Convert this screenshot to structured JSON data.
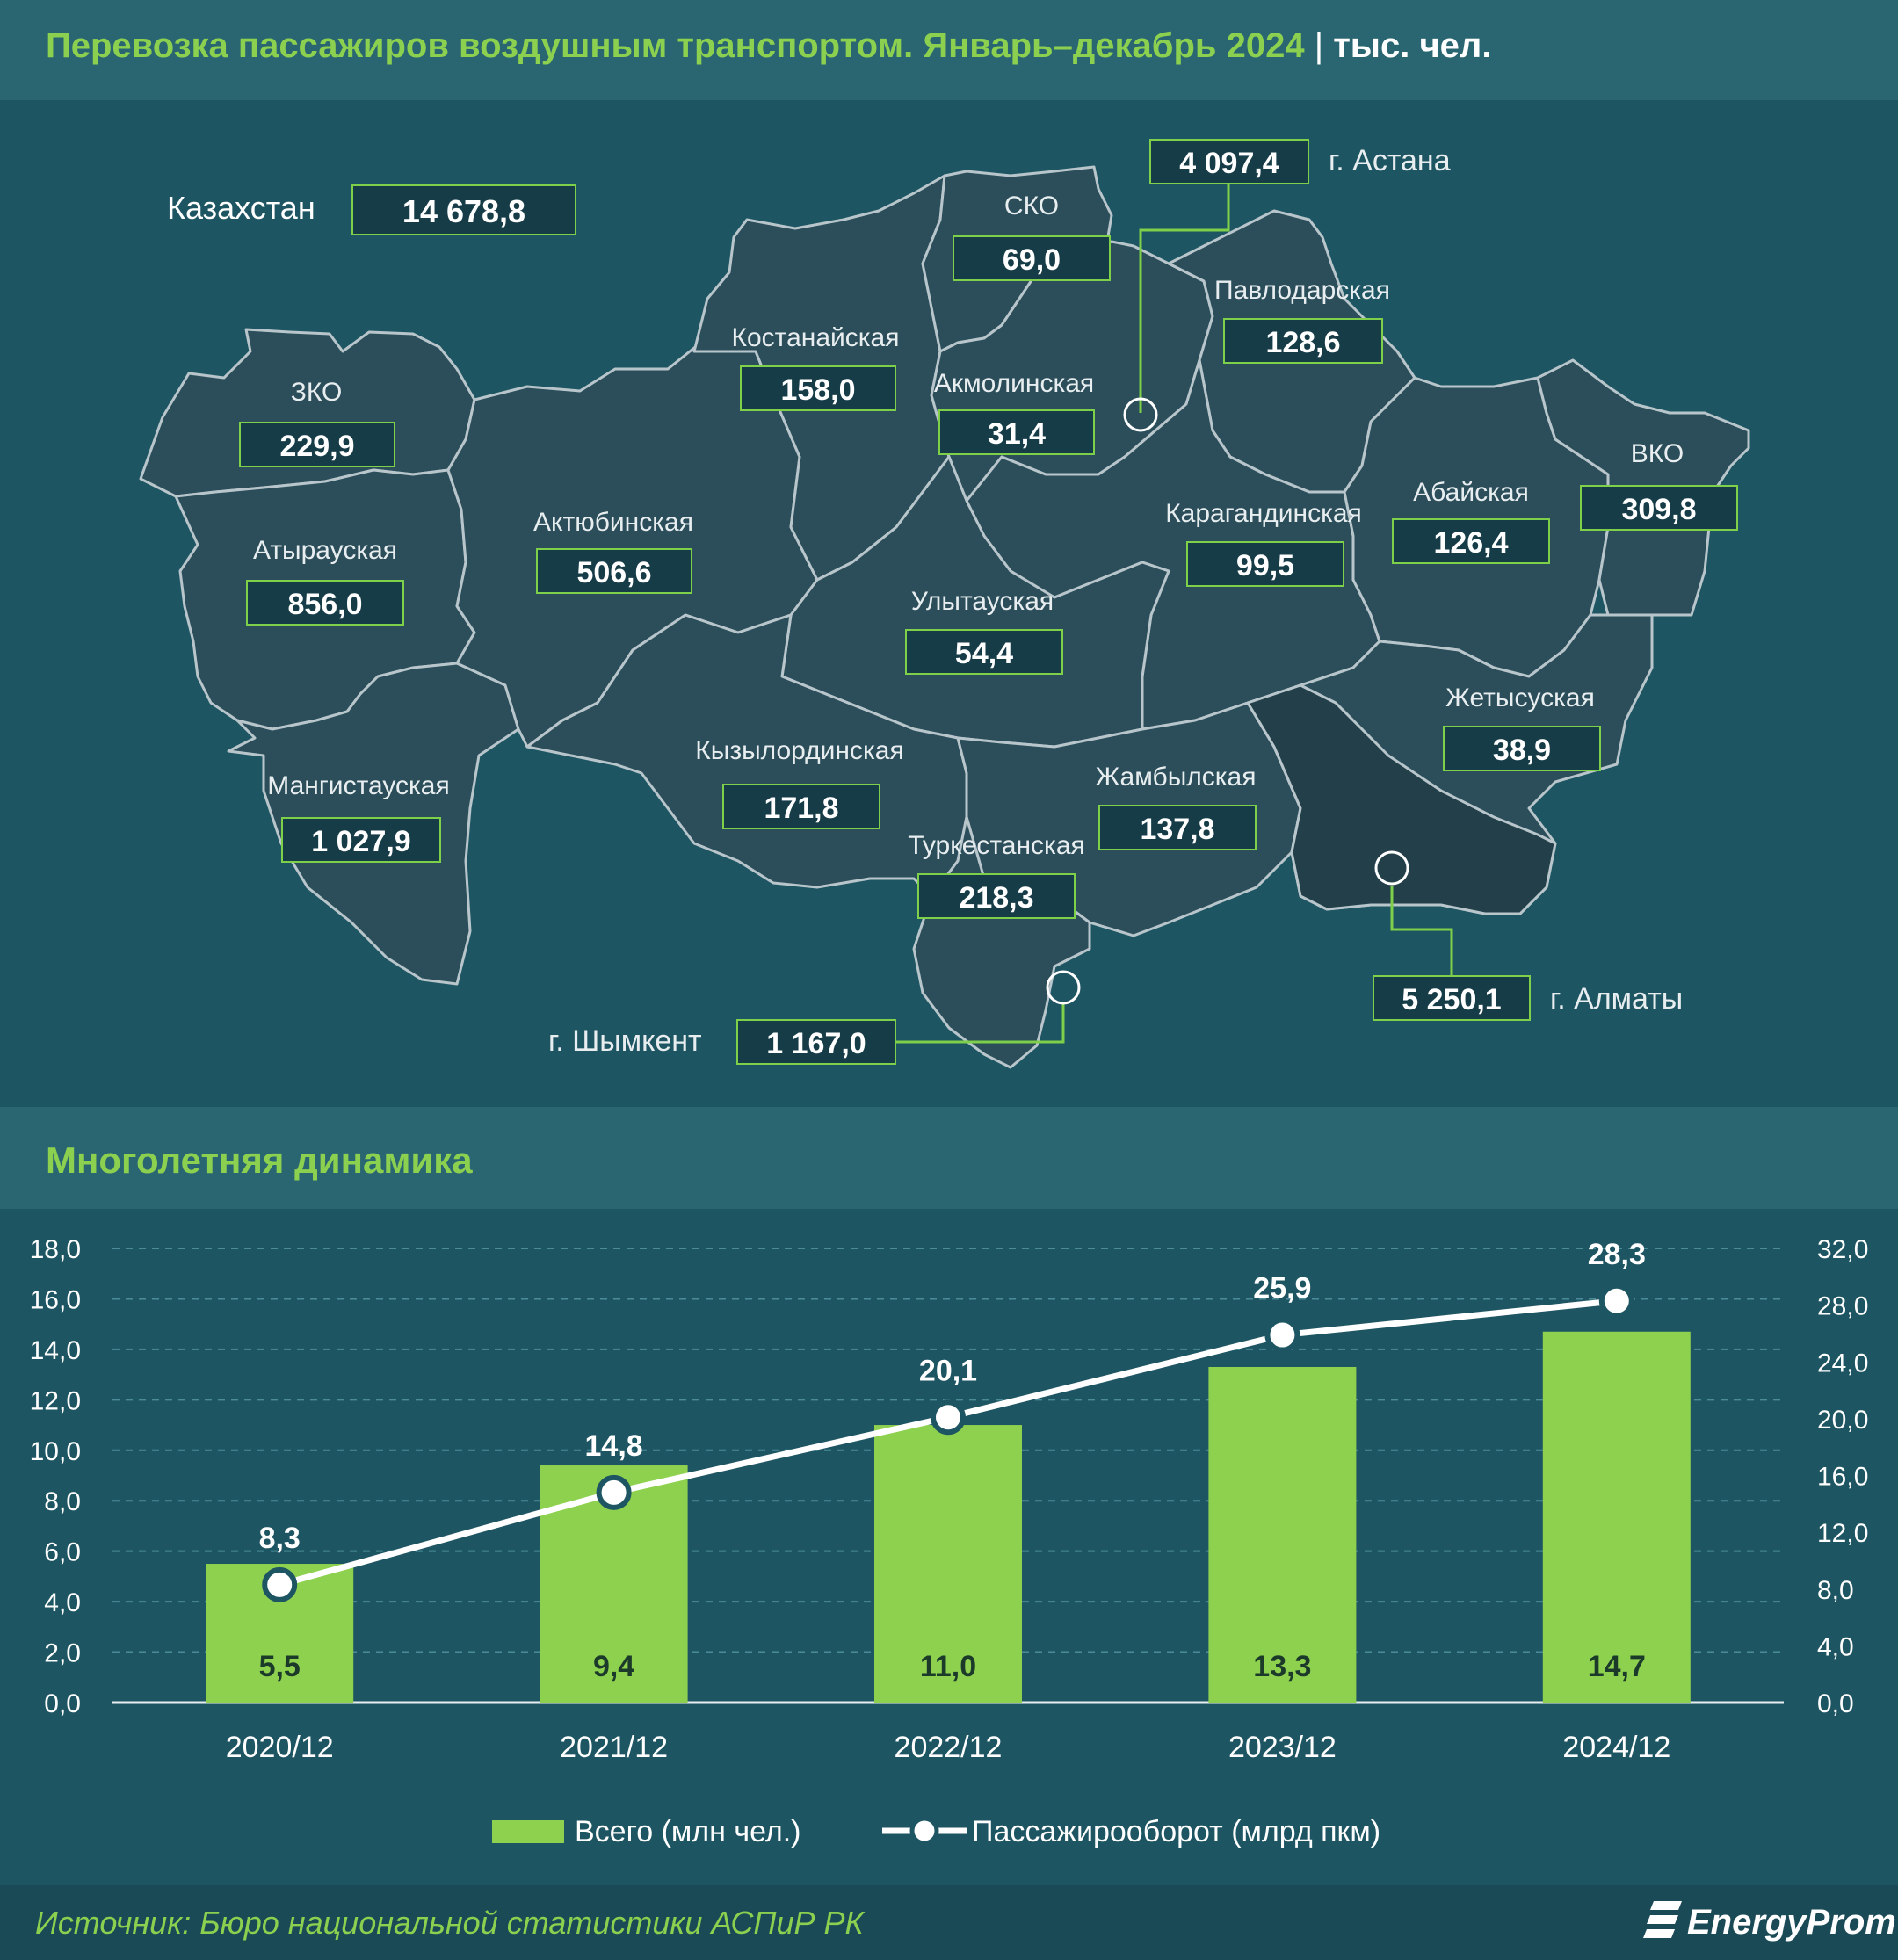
{
  "header": {
    "title": "Перевозка пассажиров воздушным транспортом. Январь–декабрь 2024",
    "unit": "тыс. чел."
  },
  "map": {
    "country_label": "Казахстан",
    "country_value": "14 678,8",
    "regions": [
      {
        "name": "СКО",
        "value": "69,0"
      },
      {
        "name": "Костанайская",
        "value": "158,0"
      },
      {
        "name": "Павлодарская",
        "value": "128,6"
      },
      {
        "name": "ЗКО",
        "value": "229,9"
      },
      {
        "name": "Акмолинская",
        "value": "31,4"
      },
      {
        "name": "Актюбинская",
        "value": "506,6"
      },
      {
        "name": "Атырауская",
        "value": "856,0"
      },
      {
        "name": "Карагандинская",
        "value": "99,5"
      },
      {
        "name": "Абайская",
        "value": "126,4"
      },
      {
        "name": "ВКО",
        "value": "309,8"
      },
      {
        "name": "Улытауская",
        "value": "54,4"
      },
      {
        "name": "Жетысуская",
        "value": "38,9"
      },
      {
        "name": "Кызылординская",
        "value": "171,8"
      },
      {
        "name": "Мангистауская",
        "value": "1 027,9"
      },
      {
        "name": "Жамбылская",
        "value": "137,8"
      },
      {
        "name": "Туркестанская",
        "value": "218,3"
      }
    ],
    "cities": [
      {
        "name": "г. Астана",
        "value": "4 097,4"
      },
      {
        "name": "г. Алматы",
        "value": "5 250,1"
      },
      {
        "name": "г. Шымкент",
        "value": "1 167,0"
      }
    ]
  },
  "dynamics_title": "Многолетняя динамика",
  "chart_data": {
    "type": "bar",
    "categories": [
      "2020/12",
      "2021/12",
      "2022/12",
      "2023/12",
      "2024/12"
    ],
    "series": [
      {
        "name": "Всего (млн чел.)",
        "type": "bar",
        "axis": "left",
        "values": [
          5.5,
          9.4,
          11.0,
          13.3,
          14.7
        ],
        "labels": [
          "5,5",
          "9,4",
          "11,0",
          "13,3",
          "14,7"
        ],
        "color": "#8ed14f"
      },
      {
        "name": "Пассажирооборот (млрд пкм)",
        "type": "line",
        "axis": "right",
        "values": [
          8.3,
          14.8,
          20.1,
          25.9,
          28.3
        ],
        "labels": [
          "8,3",
          "14,8",
          "20,1",
          "25,9",
          "28,3"
        ],
        "color": "#ffffff"
      }
    ],
    "y_left": {
      "min": 0,
      "max": 18,
      "ticks": [
        "0,0",
        "2,0",
        "4,0",
        "6,0",
        "8,0",
        "10,0",
        "12,0",
        "14,0",
        "16,0",
        "18,0"
      ]
    },
    "y_right": {
      "min": 0,
      "max": 32,
      "ticks": [
        "0,0",
        "4,0",
        "8,0",
        "12,0",
        "16,0",
        "20,0",
        "24,0",
        "28,0",
        "32,0"
      ]
    },
    "grid": true,
    "legend": "bottom"
  },
  "footer": {
    "source": "Источник: Бюро национальной статистики АСПиР РК",
    "logo": "EnergyProm"
  }
}
